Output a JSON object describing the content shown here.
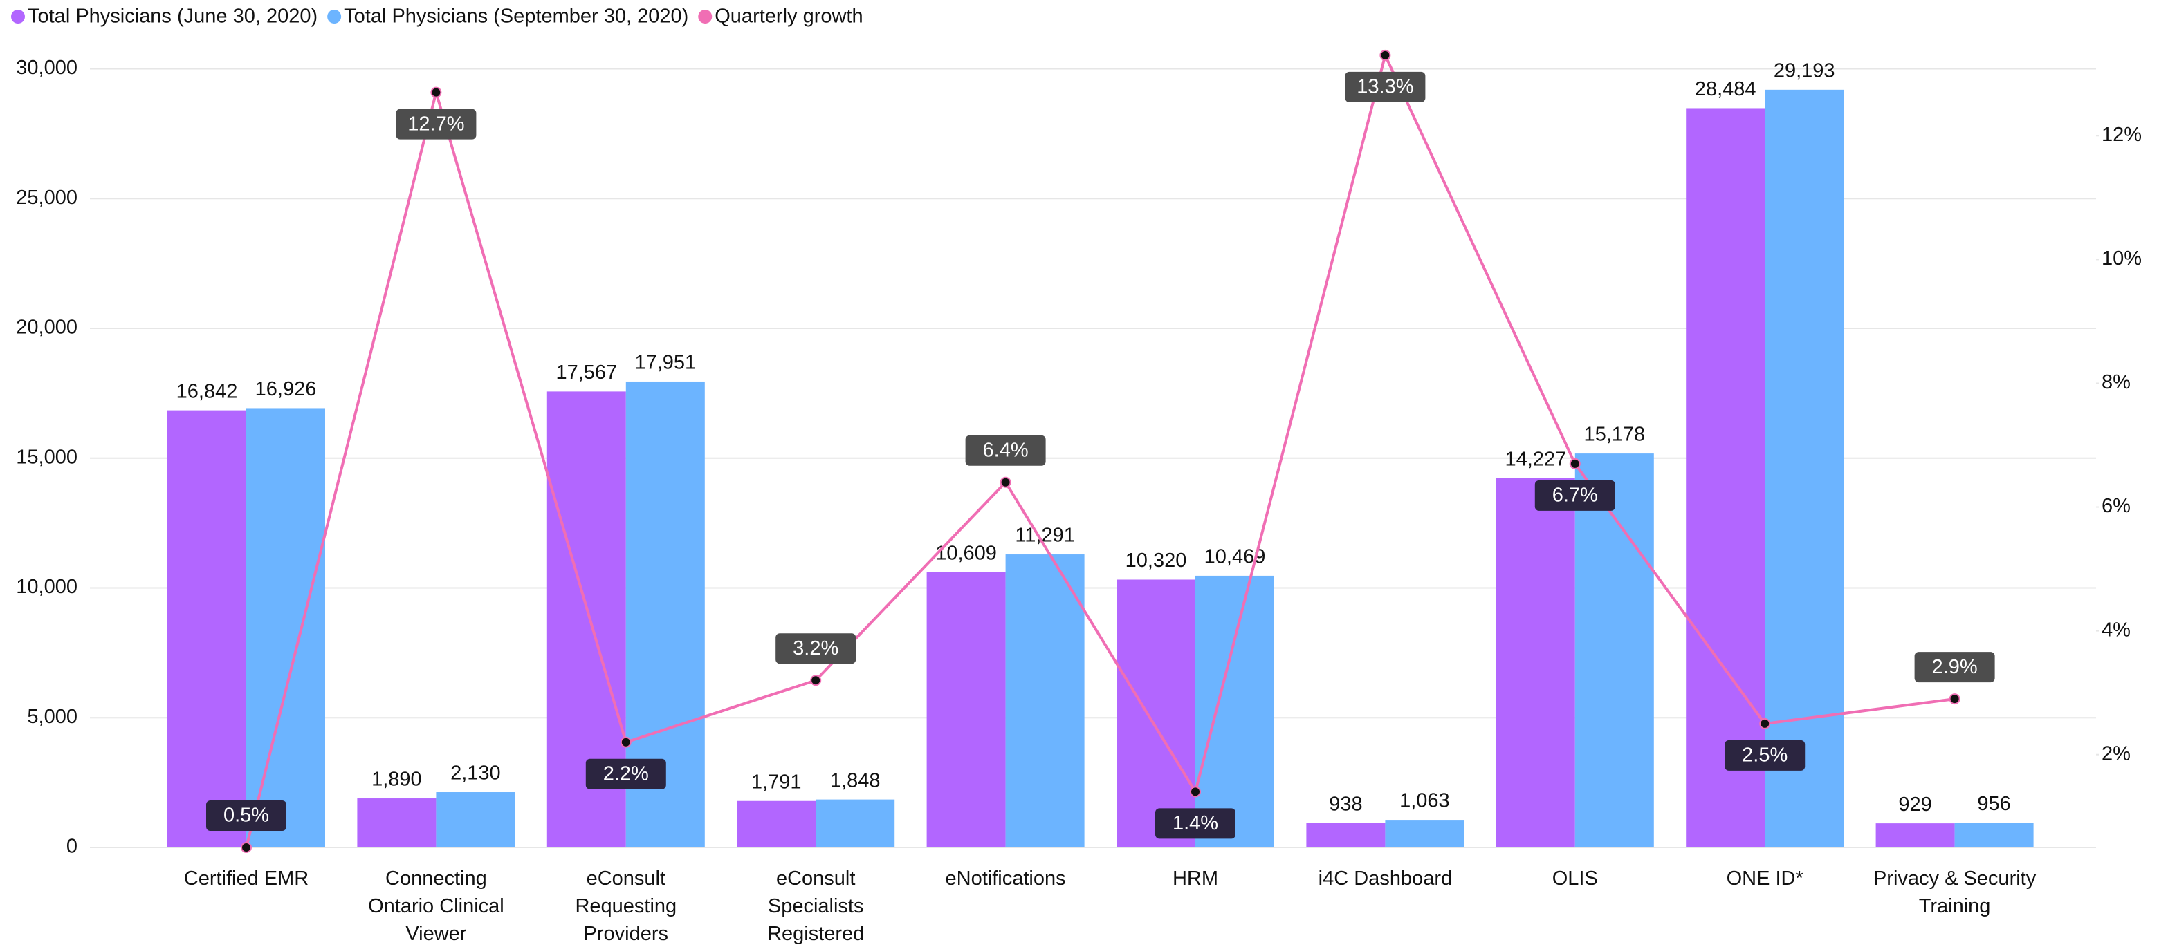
{
  "chart_data": {
    "type": "bar_line",
    "categories": [
      "Certified EMR",
      "Connecting Ontario Clinical Viewer",
      "eConsult Requesting Providers",
      "eConsult Specialists Registered",
      "eNotifications",
      "HRM",
      "i4C Dashboard",
      "OLIS",
      "ONE ID*",
      "Privacy & Security Training"
    ],
    "series": [
      {
        "name": "Total Physicians (June 30, 2020)",
        "color": "#b266ff",
        "type": "bar",
        "values": [
          16842,
          1890,
          17567,
          1791,
          10609,
          10320,
          938,
          14227,
          28484,
          929
        ],
        "value_labels": [
          "16,842",
          "1,890",
          "17,567",
          "1,791",
          "10,609",
          "10,320",
          "938",
          "14,227",
          "28,484",
          "929"
        ]
      },
      {
        "name": "Total Physicians (September 30, 2020)",
        "color": "#6cb4ff",
        "type": "bar",
        "values": [
          16926,
          2130,
          17951,
          1848,
          11291,
          10469,
          1063,
          15178,
          29193,
          956
        ],
        "value_labels": [
          "16,926",
          "2,130",
          "17,951",
          "1,848",
          "11,291",
          "10,469",
          "1,063",
          "15,178",
          "29,193",
          "956"
        ]
      },
      {
        "name": "Quarterly growth",
        "color": "#f06eb4",
        "type": "line",
        "axis": "y2",
        "values": [
          0.5,
          12.7,
          2.2,
          3.2,
          6.4,
          1.4,
          13.3,
          6.7,
          2.5,
          2.9
        ],
        "value_labels": [
          "0.5%",
          "12.7%",
          "2.2%",
          "3.2%",
          "6.4%",
          "1.4%",
          "13.3%",
          "6.7%",
          "2.5%",
          "2.9%"
        ]
      }
    ],
    "ylim": [
      0,
      31000
    ],
    "yticks": [
      0,
      {
        "value": 5000,
        "label": "5,000"
      },
      {
        "value": 10000,
        "label": "10,000"
      },
      {
        "value": 15000,
        "label": "15,000"
      },
      {
        "value": 20000,
        "label": "20,000"
      },
      {
        "value": 25000,
        "label": "25,000"
      },
      {
        "value": 30000,
        "label": "30,000"
      }
    ],
    "y2lim": [
      0.5,
      13.5
    ],
    "y2ticks": [
      {
        "value": 2,
        "label": "2%"
      },
      {
        "value": 4,
        "label": "4%"
      },
      {
        "value": 6,
        "label": "6%"
      },
      {
        "value": 8,
        "label": "8%"
      },
      {
        "value": 10,
        "label": "10%"
      },
      {
        "value": 12,
        "label": "12%"
      }
    ],
    "grid": true,
    "legend": "top-left"
  }
}
